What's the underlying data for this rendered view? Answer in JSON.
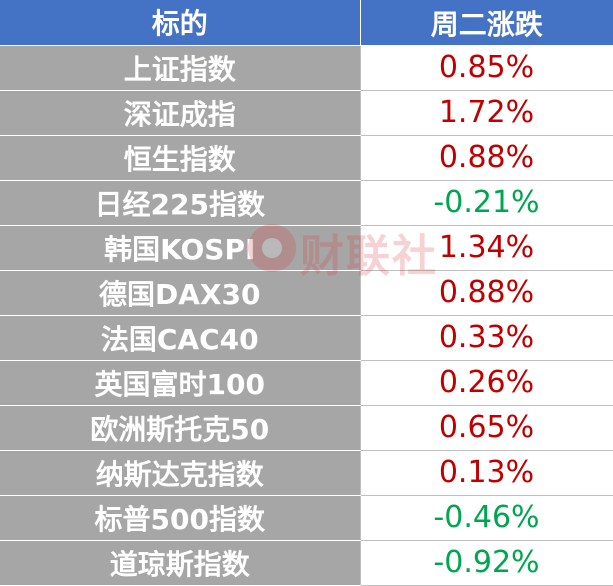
{
  "header": {
    "col_name": "标的",
    "col_change": "周二涨跌"
  },
  "rows": [
    {
      "name": "上证指数",
      "change": "0.85%",
      "dir": "up"
    },
    {
      "name": "深证成指",
      "change": "1.72%",
      "dir": "up"
    },
    {
      "name": "恒生指数",
      "change": "0.88%",
      "dir": "up"
    },
    {
      "name": "日经225指数",
      "change": "-0.21%",
      "dir": "down"
    },
    {
      "name": "韩国KOSPI",
      "change": "1.34%",
      "dir": "up"
    },
    {
      "name": "德国DAX30",
      "change": "0.88%",
      "dir": "up"
    },
    {
      "name": "法国CAC40",
      "change": "0.33%",
      "dir": "up"
    },
    {
      "name": "英国富时100",
      "change": "0.26%",
      "dir": "up"
    },
    {
      "name": "欧洲斯托克50",
      "change": "0.65%",
      "dir": "up"
    },
    {
      "name": "纳斯达克指数",
      "change": "0.13%",
      "dir": "up"
    },
    {
      "name": "标普500指数",
      "change": "-0.46%",
      "dir": "down"
    },
    {
      "name": "道琼斯指数",
      "change": "-0.92%",
      "dir": "down"
    }
  ],
  "watermark": {
    "text": "财联社",
    "icon": "cailianshe-logo-icon"
  },
  "colors": {
    "header_bg": "#4472c4",
    "name_bg": "#a6a6a6",
    "up": "#c00000",
    "down": "#00a550"
  }
}
